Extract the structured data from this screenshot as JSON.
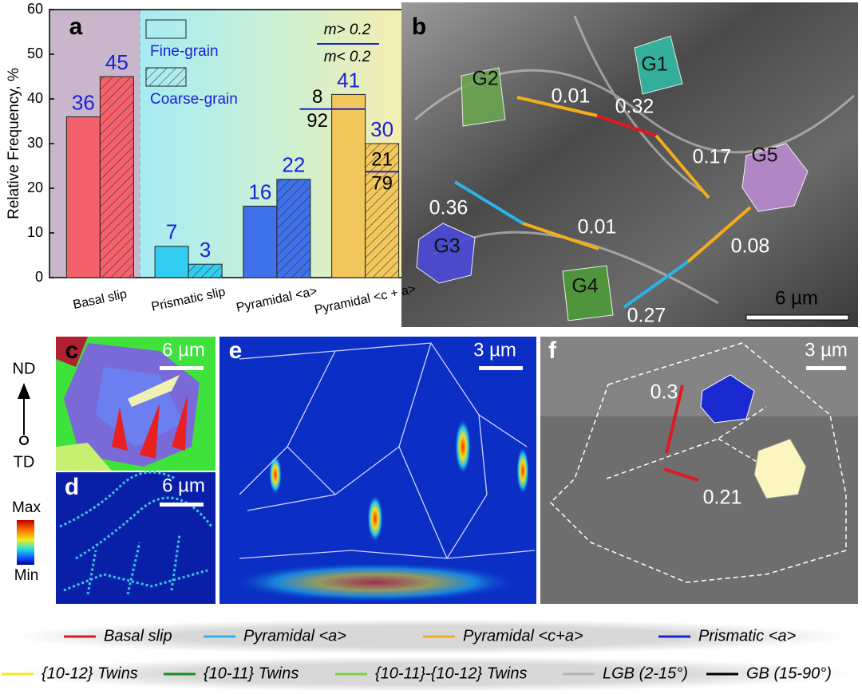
{
  "chart_data": {
    "type": "bar",
    "panel_label": "a",
    "ylabel": "Relative Frequency, %",
    "categories": [
      "Basal slip",
      "Prismatic slip",
      "Pyramidal <a>",
      "Pyramidal <c + a>"
    ],
    "category_colors": [
      "#f5616a",
      "#33cdf2",
      "#3f72ea",
      "#f2c85c"
    ],
    "series": [
      {
        "name": "Fine-grain",
        "values": [
          36,
          7,
          16,
          41
        ],
        "m_above": [
          null,
          null,
          null,
          8
        ],
        "m_below": [
          null,
          null,
          null,
          92
        ]
      },
      {
        "name": "Coarse-grain",
        "hatch": true,
        "values": [
          45,
          3,
          22,
          30
        ],
        "m_above": [
          null,
          null,
          null,
          21
        ],
        "m_below": [
          null,
          null,
          null,
          79
        ]
      }
    ],
    "m_labels": [
      "m> 0.2",
      "m< 0.2"
    ],
    "ylim": [
      0,
      60
    ],
    "yticks": [
      0,
      10,
      20,
      30,
      40,
      50,
      60
    ],
    "label_color": "#1a22d8"
  },
  "panels": {
    "b": {
      "label": "b",
      "scale_bar": "6 µm",
      "grains": [
        "G1",
        "G2",
        "G3",
        "G4",
        "G5"
      ],
      "factors": [
        0.01,
        0.32,
        0.17,
        0.36,
        0.01,
        0.08,
        0.27
      ]
    },
    "c": {
      "label": "c",
      "scale_bar": "6 µm"
    },
    "d": {
      "label": "d",
      "scale_bar": "6 µm"
    },
    "e": {
      "label": "e",
      "scale_bar": "3 µm"
    },
    "f": {
      "label": "f",
      "scale_bar": "3 µm",
      "factors": [
        0.3,
        0.21
      ]
    }
  },
  "orientation": [
    "ND",
    "TD"
  ],
  "colorbar": [
    "Max",
    "Min"
  ],
  "legend": [
    {
      "name": "Basal slip",
      "color": "#e0191f"
    },
    {
      "name": "Pyramidal <a>",
      "color": "#2bb3e8"
    },
    {
      "name": "Pyramidal <c+a>",
      "color": "#f4ad1a"
    },
    {
      "name": "Prismatic <a>",
      "color": "#1426d6"
    },
    {
      "name": "{10-12} Twins",
      "color": "#f3ee1e"
    },
    {
      "name": "{10-11} Twins",
      "color": "#1f8a22"
    },
    {
      "name": "{10-11}-{10-12} Twins",
      "color": "#7ccf4a"
    },
    {
      "name": "LGB (2-15°)",
      "color": "#b3b3b3"
    },
    {
      "name": "GB (15-90°)",
      "color": "#000000"
    }
  ]
}
